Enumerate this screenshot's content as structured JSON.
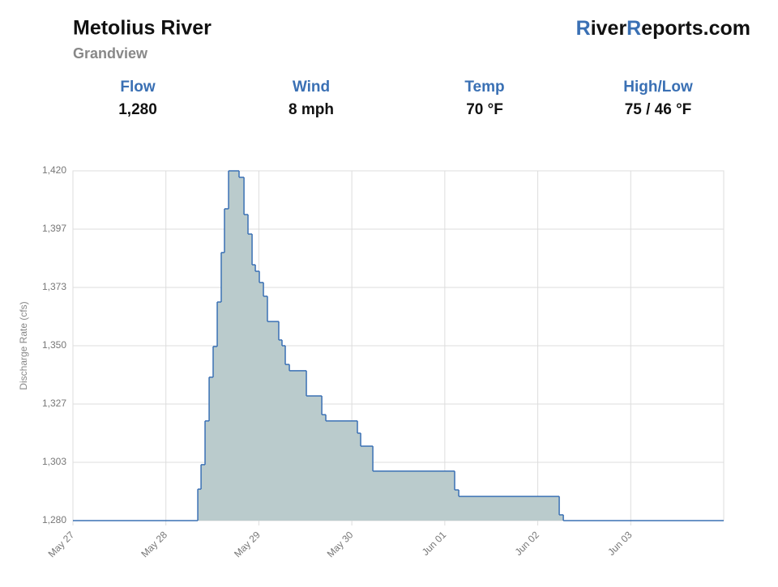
{
  "header": {
    "title": "Metolius River",
    "subtitle": "Grandview",
    "brand": [
      "R",
      "iver",
      "R",
      "eports.com"
    ],
    "stats": [
      {
        "label": "Flow",
        "value": "1,280"
      },
      {
        "label": "Wind",
        "value": "8 mph"
      },
      {
        "label": "Temp",
        "value": "70 °F"
      },
      {
        "label": "High/Low",
        "value": "75 / 46 °F"
      }
    ]
  },
  "chart_data": {
    "type": "step-area",
    "y_label": "Discharge Rate (cfs)",
    "x": [
      0,
      1.343,
      1.378,
      1.421,
      1.465,
      1.508,
      1.552,
      1.595,
      1.63,
      1.674,
      1.787,
      1.84,
      1.883,
      1.927,
      1.962,
      2.005,
      2.049,
      2.092,
      2.214,
      2.249,
      2.284,
      2.328,
      2.511,
      2.677,
      2.72,
      3.06,
      3.095,
      3.226,
      4.106,
      4.15,
      5.231,
      5.275
    ],
    "values": [
      1280,
      1292.6,
      1302.4,
      1319.9,
      1337.4,
      1349.7,
      1367.5,
      1387.3,
      1404.8,
      1420,
      1417.4,
      1402.5,
      1394.7,
      1382.4,
      1379.8,
      1375.3,
      1369.8,
      1359.7,
      1352.3,
      1350,
      1342.5,
      1340,
      1329.9,
      1322.4,
      1319.9,
      1315,
      1309.8,
      1299.8,
      1292.3,
      1289.7,
      1282.3,
      1280
    ],
    "color": "#3a70b4",
    "fill_color": "#bacbcc",
    "grid": true,
    "xlim": [
      0,
      7
    ],
    "xticks": [
      {
        "value": 0,
        "label": "May 27"
      },
      {
        "value": 1,
        "label": "May 28"
      },
      {
        "value": 2,
        "label": "May 29"
      },
      {
        "value": 3,
        "label": "May 30"
      },
      {
        "value": 4,
        "label": "Jun 01"
      },
      {
        "value": 5,
        "label": "Jun 02"
      },
      {
        "value": 6,
        "label": "Jun 03"
      }
    ],
    "ylim": [
      1280,
      1420
    ],
    "yticks": [
      {
        "value": 1280,
        "label": "1,280"
      },
      {
        "value": 1303.33,
        "label": "1,303"
      },
      {
        "value": 1326.67,
        "label": "1,327"
      },
      {
        "value": 1350,
        "label": "1,350"
      },
      {
        "value": 1373.33,
        "label": "1,373"
      },
      {
        "value": 1396.67,
        "label": "1,397"
      },
      {
        "value": 1420,
        "label": "1,420"
      }
    ]
  }
}
